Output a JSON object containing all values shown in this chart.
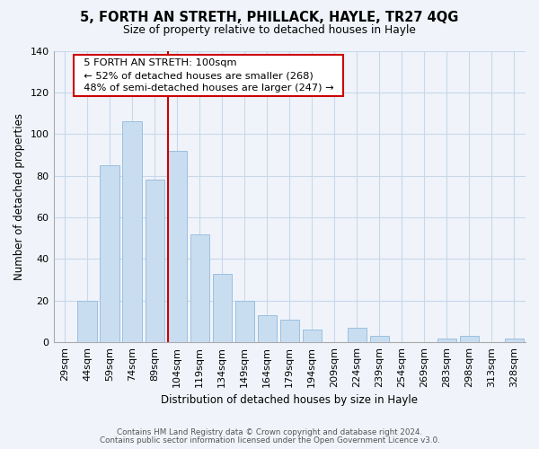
{
  "title": "5, FORTH AN STRETH, PHILLACK, HAYLE, TR27 4QG",
  "subtitle": "Size of property relative to detached houses in Hayle",
  "xlabel": "Distribution of detached houses by size in Hayle",
  "ylabel": "Number of detached properties",
  "bar_labels": [
    "29sqm",
    "44sqm",
    "59sqm",
    "74sqm",
    "89sqm",
    "104sqm",
    "119sqm",
    "134sqm",
    "149sqm",
    "164sqm",
    "179sqm",
    "194sqm",
    "209sqm",
    "224sqm",
    "239sqm",
    "254sqm",
    "269sqm",
    "283sqm",
    "298sqm",
    "313sqm",
    "328sqm"
  ],
  "bar_values": [
    0,
    20,
    85,
    106,
    78,
    92,
    52,
    33,
    20,
    13,
    11,
    6,
    0,
    7,
    3,
    0,
    0,
    2,
    3,
    0,
    2
  ],
  "bar_color": "#c9ddf0",
  "bar_edge_color": "#9cbfe0",
  "vline_index": 5,
  "vline_color": "#cc0000",
  "ylim": [
    0,
    140
  ],
  "yticks": [
    0,
    20,
    40,
    60,
    80,
    100,
    120,
    140
  ],
  "annotation_title": "5 FORTH AN STRETH: 100sqm",
  "annotation_line1": "← 52% of detached houses are smaller (268)",
  "annotation_line2": "48% of semi-detached houses are larger (247) →",
  "annotation_box_color": "#ffffff",
  "annotation_box_edge": "#cc0000",
  "footer1": "Contains HM Land Registry data © Crown copyright and database right 2024.",
  "footer2": "Contains public sector information licensed under the Open Government Licence v3.0.",
  "background_color": "#f0f4fa",
  "grid_color": "#c8d8ea"
}
